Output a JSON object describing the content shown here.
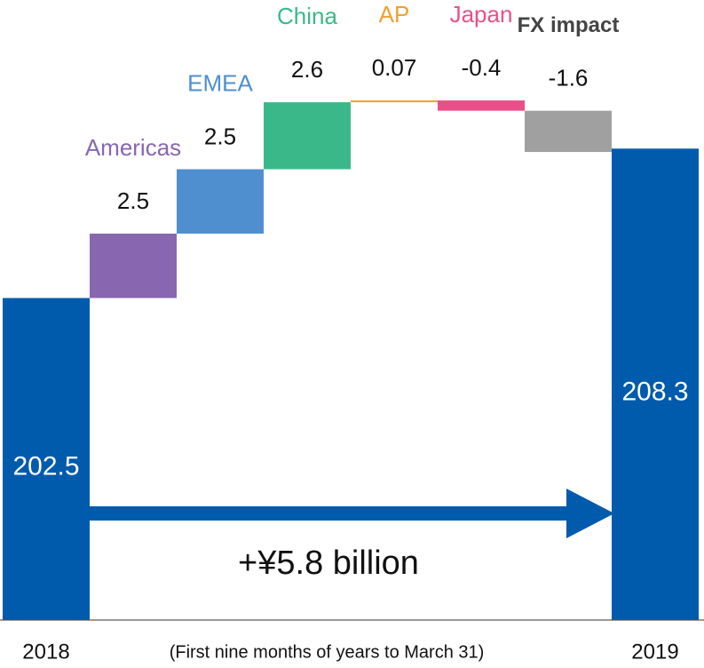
{
  "chart_data": {
    "type": "waterfall",
    "categories": [
      "2018",
      "Americas",
      "EMEA",
      "China",
      "AP",
      "Japan",
      "FX impact",
      "2019"
    ],
    "values": [
      202.5,
      2.5,
      2.5,
      2.6,
      0.07,
      -0.4,
      -1.6,
      208.3
    ],
    "kinds": [
      "total",
      "delta",
      "delta",
      "delta",
      "delta",
      "delta",
      "delta",
      "total"
    ],
    "colors": [
      "#005bac",
      "#8866b0",
      "#4f8fd0",
      "#3bb88a",
      "#f0a030",
      "#e8508a",
      "#a0a0a0",
      "#005bac"
    ],
    "ylim": [
      190,
      214
    ],
    "annotation": "+¥5.8 billion",
    "note": "(First nine months of years to March 31)"
  }
}
